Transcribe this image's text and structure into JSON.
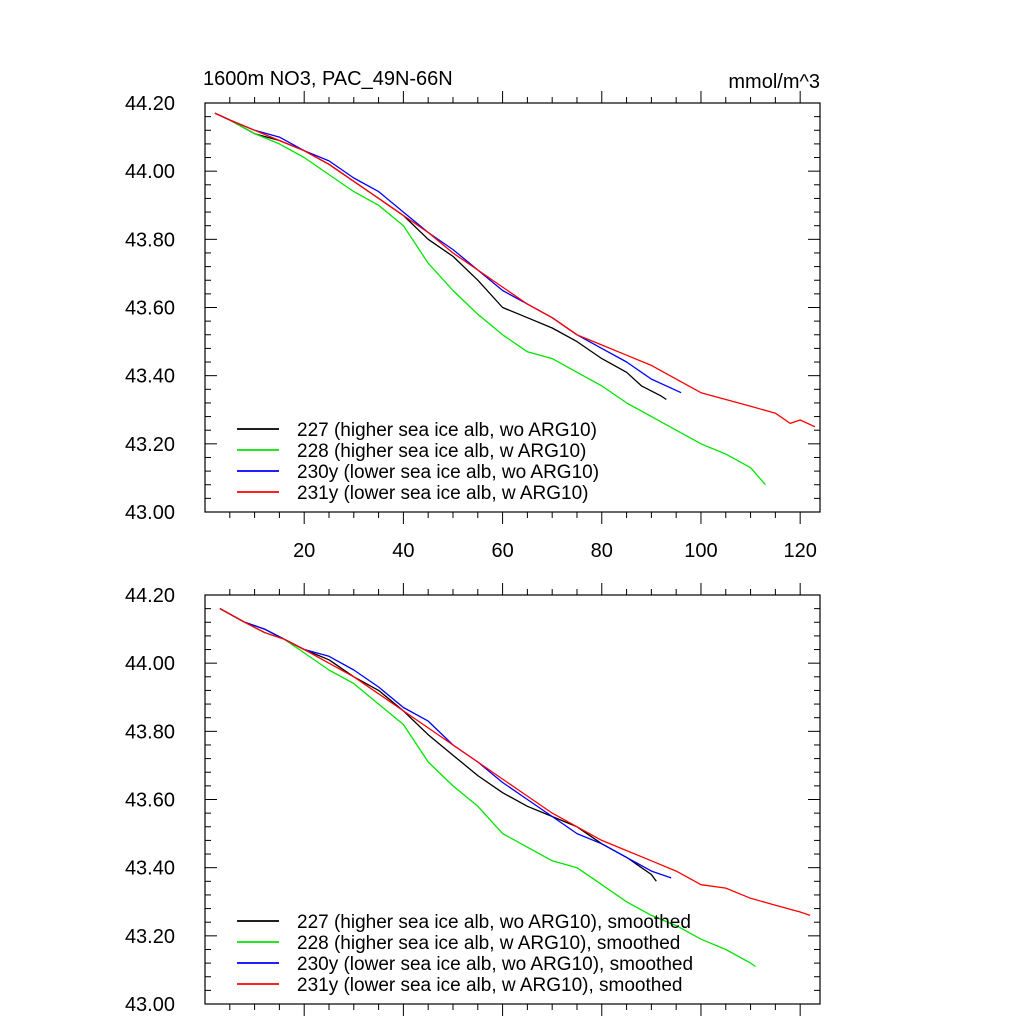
{
  "chart_data": [
    {
      "type": "line",
      "title": "1600m NO3, PAC_49N-66N",
      "units": "mmol/m^3",
      "xlim": [
        0,
        124
      ],
      "ylim": [
        43.0,
        44.2
      ],
      "x_ticks": [
        "20",
        "40",
        "60",
        "80",
        "100",
        "120"
      ],
      "y_ticks": [
        "43.00",
        "43.20",
        "43.40",
        "43.60",
        "43.80",
        "44.00",
        "44.20"
      ],
      "legend_position": "bottom-left",
      "series": [
        {
          "name": "227 (higher sea ice alb, wo ARG10)",
          "color": "#000000",
          "x": [
            2,
            5,
            10,
            15,
            20,
            25,
            30,
            35,
            40,
            45,
            50,
            55,
            60,
            65,
            70,
            75,
            80,
            85,
            88,
            92,
            93
          ],
          "values": [
            44.17,
            44.15,
            44.11,
            44.09,
            44.06,
            44.02,
            43.97,
            43.92,
            43.87,
            43.8,
            43.75,
            43.68,
            43.6,
            43.57,
            43.54,
            43.5,
            43.45,
            43.41,
            43.37,
            43.34,
            43.33
          ]
        },
        {
          "name": "228 (higher sea ice alb, w ARG10)",
          "color": "#00e600",
          "x": [
            2,
            5,
            10,
            15,
            20,
            25,
            30,
            35,
            40,
            45,
            50,
            55,
            60,
            65,
            70,
            75,
            80,
            85,
            90,
            95,
            100,
            105,
            110,
            113
          ],
          "values": [
            44.17,
            44.15,
            44.11,
            44.08,
            44.04,
            43.99,
            43.94,
            43.9,
            43.84,
            43.73,
            43.65,
            43.58,
            43.52,
            43.47,
            43.45,
            43.41,
            43.37,
            43.32,
            43.28,
            43.24,
            43.2,
            43.17,
            43.13,
            43.08
          ]
        },
        {
          "name": "230y (lower sea ice alb, wo ARG10)",
          "color": "#0000ff",
          "x": [
            2,
            5,
            10,
            15,
            20,
            25,
            30,
            35,
            40,
            45,
            50,
            55,
            60,
            65,
            70,
            75,
            80,
            85,
            90,
            96
          ],
          "values": [
            44.17,
            44.15,
            44.12,
            44.1,
            44.06,
            44.03,
            43.98,
            43.94,
            43.88,
            43.82,
            43.77,
            43.71,
            43.65,
            43.61,
            43.57,
            43.52,
            43.48,
            43.44,
            43.39,
            43.35
          ]
        },
        {
          "name": "231y (lower sea ice alb, w ARG10)",
          "color": "#ff0000",
          "x": [
            2,
            5,
            10,
            15,
            20,
            25,
            30,
            35,
            40,
            45,
            50,
            55,
            60,
            65,
            70,
            75,
            80,
            85,
            90,
            95,
            100,
            105,
            110,
            115,
            118,
            120,
            123
          ],
          "values": [
            44.17,
            44.15,
            44.12,
            44.09,
            44.06,
            44.02,
            43.97,
            43.92,
            43.87,
            43.82,
            43.76,
            43.71,
            43.66,
            43.61,
            43.57,
            43.52,
            43.49,
            43.46,
            43.43,
            43.39,
            43.35,
            43.33,
            43.31,
            43.29,
            43.26,
            43.27,
            43.25
          ]
        }
      ]
    },
    {
      "type": "line",
      "xlim": [
        0,
        124
      ],
      "ylim": [
        43.0,
        44.2
      ],
      "x_ticks": [],
      "y_ticks": [
        "43.00",
        "43.20",
        "43.40",
        "43.60",
        "43.80",
        "44.00",
        "44.20"
      ],
      "legend_position": "bottom-left",
      "series": [
        {
          "name": "227 (higher sea ice alb, wo ARG10), smoothed",
          "color": "#000000",
          "x": [
            3,
            8,
            12,
            16,
            20,
            25,
            30,
            35,
            40,
            45,
            50,
            55,
            60,
            65,
            70,
            75,
            80,
            85,
            90,
            91
          ],
          "values": [
            44.16,
            44.12,
            44.1,
            44.07,
            44.04,
            44.01,
            43.96,
            43.92,
            43.86,
            43.79,
            43.73,
            43.67,
            43.62,
            43.58,
            43.55,
            43.52,
            43.47,
            43.43,
            43.38,
            43.36
          ]
        },
        {
          "name": "228 (higher sea ice alb, w ARG10), smoothed",
          "color": "#00e600",
          "x": [
            3,
            8,
            12,
            16,
            20,
            25,
            30,
            35,
            40,
            45,
            50,
            55,
            60,
            65,
            70,
            75,
            80,
            85,
            90,
            95,
            100,
            105,
            110,
            111
          ],
          "values": [
            44.16,
            44.12,
            44.09,
            44.07,
            44.03,
            43.98,
            43.94,
            43.88,
            43.82,
            43.71,
            43.64,
            43.58,
            43.5,
            43.46,
            43.42,
            43.4,
            43.35,
            43.3,
            43.26,
            43.23,
            43.19,
            43.16,
            43.12,
            43.11
          ]
        },
        {
          "name": "230y (lower sea ice alb, wo ARG10), smoothed",
          "color": "#0000ff",
          "x": [
            3,
            8,
            12,
            16,
            20,
            25,
            30,
            35,
            40,
            45,
            50,
            55,
            60,
            65,
            70,
            75,
            80,
            85,
            90,
            94
          ],
          "values": [
            44.16,
            44.12,
            44.1,
            44.07,
            44.04,
            44.02,
            43.98,
            43.93,
            43.87,
            43.83,
            43.76,
            43.71,
            43.65,
            43.6,
            43.55,
            43.5,
            43.47,
            43.43,
            43.39,
            43.37
          ]
        },
        {
          "name": "231y (lower sea ice alb, w ARG10), smoothed",
          "color": "#ff0000",
          "x": [
            3,
            8,
            12,
            16,
            20,
            25,
            30,
            35,
            40,
            45,
            50,
            55,
            60,
            65,
            70,
            75,
            80,
            85,
            90,
            95,
            100,
            105,
            110,
            115,
            120,
            122
          ],
          "values": [
            44.16,
            44.12,
            44.09,
            44.07,
            44.04,
            44.0,
            43.96,
            43.91,
            43.86,
            43.81,
            43.76,
            43.71,
            43.66,
            43.61,
            43.56,
            43.52,
            43.48,
            43.45,
            43.42,
            43.39,
            43.35,
            43.34,
            43.31,
            43.29,
            43.27,
            43.26
          ]
        }
      ]
    }
  ]
}
